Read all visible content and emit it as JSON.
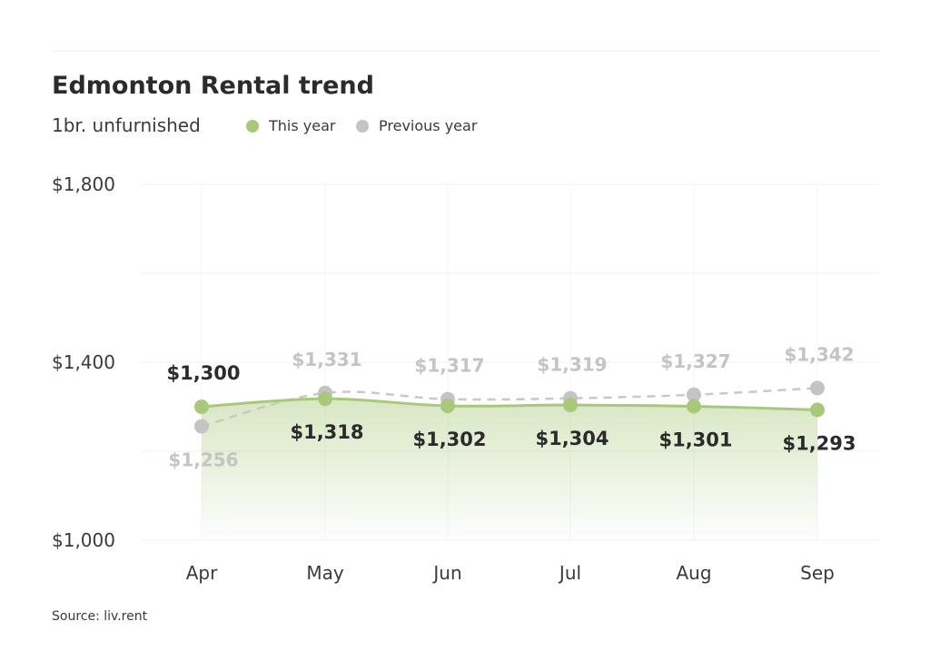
{
  "chart_data": {
    "type": "line",
    "title": "Edmonton Rental trend",
    "subtitle": "1br. unfurnished",
    "categories": [
      "Apr",
      "May",
      "Jun",
      "Jul",
      "Aug",
      "Sep"
    ],
    "series": [
      {
        "name": "This year",
        "values": [
          1300,
          1318,
          1302,
          1304,
          1301,
          1293
        ],
        "labels": [
          "$1,300",
          "$1,318",
          "$1,302",
          "$1,304",
          "$1,301",
          "$1,293"
        ],
        "color": "#a8c97a"
      },
      {
        "name": "Previous year",
        "values": [
          1256,
          1331,
          1317,
          1319,
          1327,
          1342
        ],
        "labels": [
          "$1,256",
          "$1,331",
          "$1,317",
          "$1,319",
          "$1,327",
          "$1,342"
        ],
        "color": "#c4c4c4"
      }
    ],
    "ylim": [
      1000,
      1800
    ],
    "yticks": [
      1000,
      1400,
      1800
    ],
    "ytick_labels": [
      "$1,000",
      "$1,400",
      "$1,800"
    ],
    "grid": true,
    "legend_position": "top-left",
    "source": "Source: liv.rent"
  }
}
